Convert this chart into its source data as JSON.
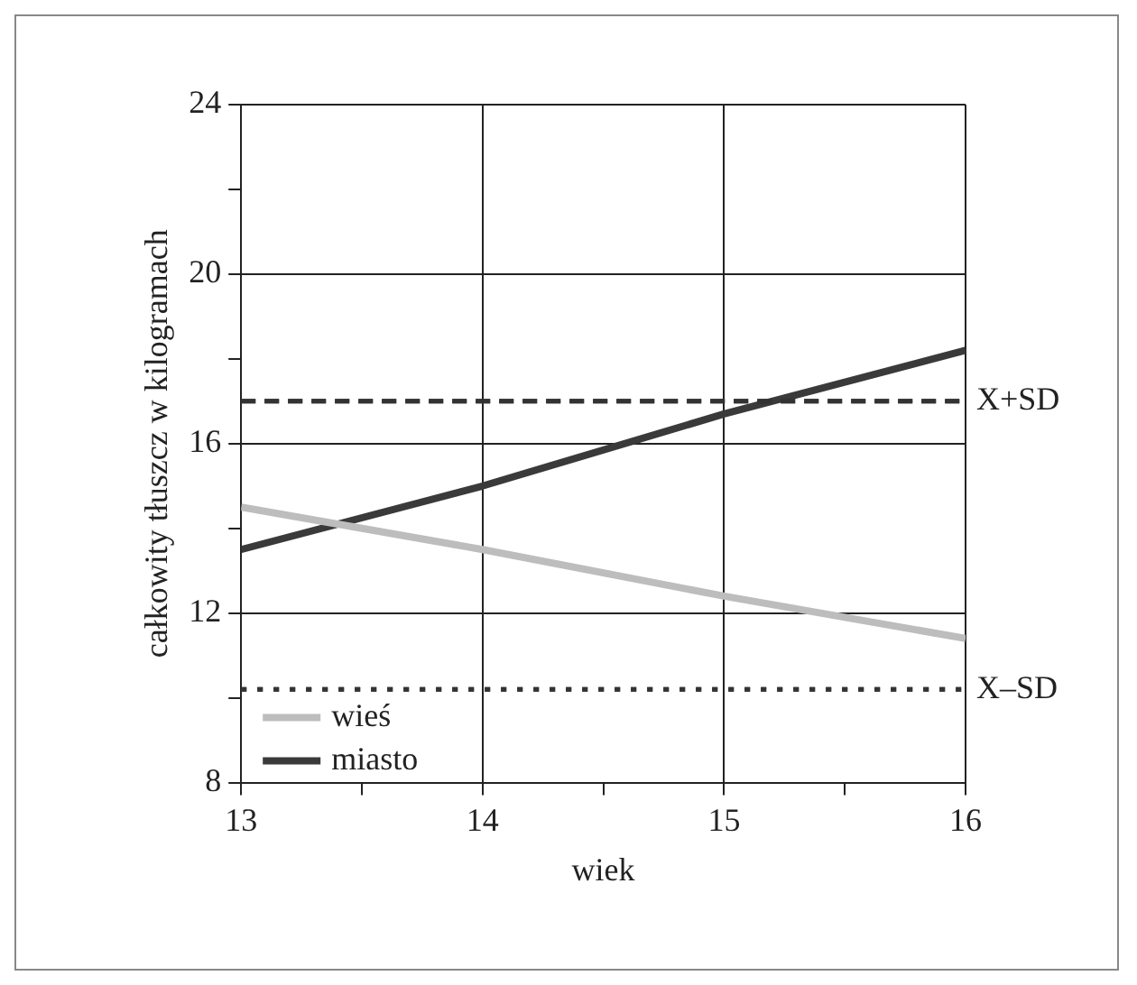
{
  "chart_data": {
    "type": "line",
    "xlabel": "wiek",
    "ylabel": "całkowity tłuszcz w kilogramach",
    "x": [
      13,
      14,
      15,
      16
    ],
    "series": [
      {
        "name": "wieś",
        "color": "#bdbdbd",
        "values": [
          14.5,
          13.5,
          12.4,
          11.4
        ]
      },
      {
        "name": "miasto",
        "color": "#3a3a3a",
        "values": [
          13.5,
          15.0,
          16.7,
          18.2
        ]
      }
    ],
    "xlim": [
      13,
      16
    ],
    "xticks": [
      13,
      {
        "value": 13.5,
        "label": null
      },
      14,
      {
        "value": 14.5,
        "label": null
      },
      15,
      {
        "value": 15.5,
        "label": null
      },
      16
    ],
    "ylim": [
      8,
      24
    ],
    "yticks": [
      8,
      {
        "value": 10,
        "label": null
      },
      12,
      {
        "value": 14,
        "label": null
      },
      16,
      {
        "value": 18,
        "label": null
      },
      20,
      {
        "value": 22,
        "label": null
      },
      24
    ],
    "ref_lines": [
      {
        "axis": "y",
        "value": 17,
        "label": "X+SD",
        "color": "#333333",
        "line_style": "dashed"
      },
      {
        "axis": "y",
        "value": 10.2,
        "label": "X–SD",
        "color": "#333333",
        "line_style": "dotted"
      }
    ],
    "grid": true,
    "legend": "bottom left",
    "marker": "none",
    "line_style": "solid"
  }
}
